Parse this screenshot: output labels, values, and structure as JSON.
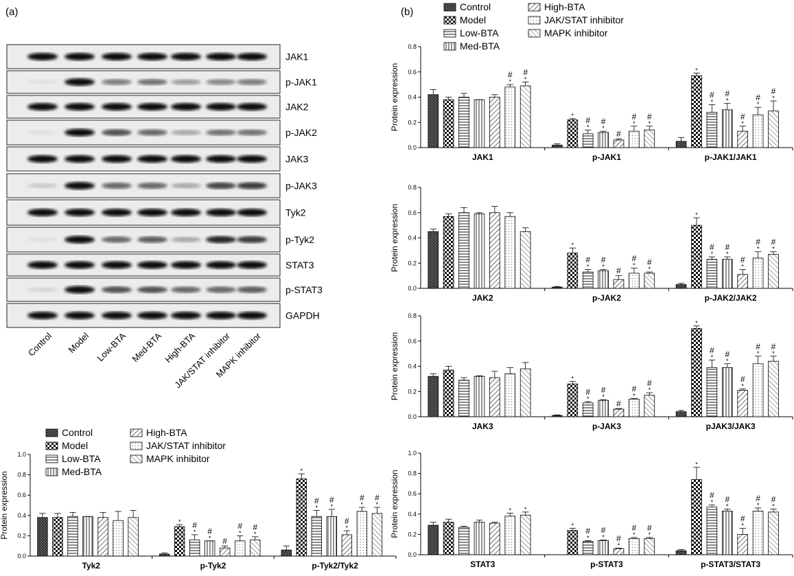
{
  "panel_a_label": "(a)",
  "panel_b_label": "(b)",
  "blot": {
    "rows": [
      "JAK1",
      "p-JAK1",
      "JAK2",
      "p-JAK2",
      "JAK3",
      "p-JAK3",
      "Tyk2",
      "p-Tyk2",
      "STAT3",
      "p-STAT3",
      "GAPDH"
    ],
    "lanes": [
      "Control",
      "Model",
      "Low-BTA",
      "Med-BTA",
      "High-BTA",
      "JAK/STAT inhibitor",
      "MAPK inhibitor"
    ],
    "intensity": [
      [
        1,
        1,
        1,
        1,
        1,
        1,
        1
      ],
      [
        0.05,
        1,
        0.5,
        0.55,
        0.35,
        0.45,
        0.5
      ],
      [
        1,
        1,
        1,
        1,
        1,
        1,
        1
      ],
      [
        0.05,
        1,
        0.7,
        0.6,
        0.3,
        0.55,
        0.55
      ],
      [
        1,
        1,
        1,
        1,
        1,
        1,
        1
      ],
      [
        0.15,
        1,
        0.6,
        0.6,
        0.3,
        0.75,
        0.8
      ],
      [
        1,
        1,
        1,
        1,
        1,
        1,
        1
      ],
      [
        0.05,
        1,
        0.6,
        0.65,
        0.3,
        0.9,
        0.8
      ],
      [
        1,
        1,
        1,
        1,
        1,
        1,
        1
      ],
      [
        0.1,
        1,
        0.7,
        0.7,
        0.6,
        0.6,
        0.65
      ],
      [
        1,
        1,
        1,
        1,
        1,
        1,
        1
      ]
    ]
  },
  "legend_labels": [
    "Control",
    "Model",
    "Low-BTA",
    "Med-BTA",
    "High-BTA",
    "JAK/STAT inhibitor",
    "MAPK inhibitor"
  ],
  "chart_data": [
    {
      "id": "tyk2",
      "type": "bar",
      "ylabel": "Protein expression",
      "ylim": [
        0,
        1.0
      ],
      "yticks": [
        "0.0",
        "0.2",
        "0.4",
        "0.6",
        "0.8",
        "1.0"
      ],
      "categories": [
        "Tyk2",
        "p-Tyk2",
        "p-Tyk2/Tyk2"
      ],
      "series_names": [
        "Control",
        "Model",
        "Low-BTA",
        "Med-BTA",
        "High-BTA",
        "JAK/STAT inhibitor",
        "MAPK inhibitor"
      ],
      "values": [
        [
          0.38,
          0.38,
          0.39,
          0.39,
          0.38,
          0.35,
          0.38
        ],
        [
          0.02,
          0.29,
          0.16,
          0.15,
          0.08,
          0.15,
          0.16
        ],
        [
          0.06,
          0.76,
          0.39,
          0.39,
          0.21,
          0.44,
          0.42
        ]
      ],
      "errors": [
        [
          0.04,
          0.04,
          0.04,
          0.0,
          0.05,
          0.09,
          0.07
        ],
        [
          0.01,
          0.02,
          0.05,
          0.0,
          0.02,
          0.05,
          0.03
        ],
        [
          0.04,
          0.05,
          0.06,
          0.07,
          0.04,
          0.04,
          0.06
        ]
      ],
      "marks": [
        [
          "",
          "",
          "",
          "",
          "",
          "",
          ""
        ],
        [
          "",
          "*",
          "#*",
          "#*",
          "#",
          "#*",
          "#*"
        ],
        [
          "",
          "*",
          "#*",
          "#*",
          "#*",
          "#*",
          "#*"
        ]
      ]
    },
    {
      "id": "jak1",
      "type": "bar",
      "ylabel": "Protein expression",
      "ylim": [
        0,
        0.8
      ],
      "yticks": [
        "0.0",
        "0.2",
        "0.4",
        "0.6",
        "0.8"
      ],
      "categories": [
        "JAK1",
        "p-JAK1",
        "p-JAK1/JAK1"
      ],
      "series_names": [
        "Control",
        "Model",
        "Low-BTA",
        "Med-BTA",
        "High-BTA",
        "JAK/STAT inhibitor",
        "MAPK inhibitor"
      ],
      "values": [
        [
          0.42,
          0.38,
          0.4,
          0.38,
          0.4,
          0.48,
          0.49
        ],
        [
          0.02,
          0.22,
          0.11,
          0.12,
          0.06,
          0.13,
          0.14
        ],
        [
          0.05,
          0.57,
          0.28,
          0.3,
          0.13,
          0.26,
          0.29
        ]
      ],
      "errors": [
        [
          0.04,
          0.02,
          0.03,
          0.0,
          0.02,
          0.02,
          0.03
        ],
        [
          0.01,
          0.01,
          0.03,
          0.01,
          0.01,
          0.04,
          0.03
        ],
        [
          0.03,
          0.02,
          0.06,
          0.05,
          0.04,
          0.06,
          0.08
        ]
      ],
      "marks": [
        [
          "",
          "",
          "",
          "",
          "",
          "#*",
          "#*"
        ],
        [
          "",
          "*",
          "#*",
          "#*",
          "#",
          "#*",
          "#*"
        ],
        [
          "",
          "*",
          "#*",
          "#*",
          "#*",
          "#*",
          "#*"
        ]
      ]
    },
    {
      "id": "jak2",
      "type": "bar",
      "ylabel": "Protein expression",
      "ylim": [
        0,
        0.8
      ],
      "yticks": [
        "0.0",
        "0.2",
        "0.4",
        "0.6",
        "0.8"
      ],
      "categories": [
        "JAK2",
        "p-JAK2",
        "p-JAK2/JAK2"
      ],
      "series_names": [
        "Control",
        "Model",
        "Low-BTA",
        "Med-BTA",
        "High-BTA",
        "JAK/STAT inhibitor",
        "MAPK inhibitor"
      ],
      "values": [
        [
          0.45,
          0.57,
          0.6,
          0.59,
          0.6,
          0.57,
          0.45
        ],
        [
          0.01,
          0.28,
          0.13,
          0.14,
          0.07,
          0.12,
          0.12
        ],
        [
          0.03,
          0.5,
          0.23,
          0.23,
          0.11,
          0.24,
          0.27
        ]
      ],
      "errors": [
        [
          0.02,
          0.02,
          0.04,
          0.01,
          0.05,
          0.03,
          0.03
        ],
        [
          0.005,
          0.04,
          0.02,
          0.01,
          0.03,
          0.04,
          0.01
        ],
        [
          0.01,
          0.06,
          0.02,
          0.02,
          0.04,
          0.05,
          0.02
        ]
      ],
      "marks": [
        [
          "",
          "",
          "",
          "",
          "",
          "",
          ""
        ],
        [
          "",
          "*",
          "#*",
          "#*",
          "#",
          "#*",
          "#*"
        ],
        [
          "",
          "*",
          "#*",
          "#*",
          "#*",
          "#*",
          "#*"
        ]
      ]
    },
    {
      "id": "jak3",
      "type": "bar",
      "ylabel": "Protein expression",
      "ylim": [
        0,
        0.8
      ],
      "yticks": [
        "0.0",
        "0.2",
        "0.4",
        "0.6",
        "0.8"
      ],
      "categories": [
        "JAK3",
        "p-JAK3",
        "pJAK3/JAK3"
      ],
      "series_names": [
        "Control",
        "Model",
        "Low-BTA",
        "Med-BTA",
        "High-BTA",
        "JAK/STAT inhibitor",
        "MAPK inhibitor"
      ],
      "values": [
        [
          0.32,
          0.37,
          0.29,
          0.32,
          0.31,
          0.34,
          0.38
        ],
        [
          0.01,
          0.26,
          0.11,
          0.13,
          0.06,
          0.14,
          0.17
        ],
        [
          0.04,
          0.7,
          0.39,
          0.39,
          0.21,
          0.42,
          0.44
        ]
      ],
      "errors": [
        [
          0.02,
          0.03,
          0.02,
          0.005,
          0.05,
          0.05,
          0.05
        ],
        [
          0.005,
          0.02,
          0.01,
          0.005,
          0.005,
          0.005,
          0.02
        ],
        [
          0.01,
          0.02,
          0.06,
          0.03,
          0.01,
          0.06,
          0.04
        ]
      ],
      "marks": [
        [
          "",
          "",
          "",
          "",
          "",
          "",
          ""
        ],
        [
          "",
          "*",
          "#*",
          "#*",
          "#",
          "#*",
          "#*"
        ],
        [
          "",
          "*",
          "#*",
          "#*",
          "#*",
          "#*",
          "#*"
        ]
      ]
    },
    {
      "id": "stat3",
      "type": "bar",
      "ylabel": "Protein expression",
      "ylim": [
        0,
        1.0
      ],
      "yticks": [
        "0.0",
        "0.2",
        "0.4",
        "0.6",
        "0.8",
        "1.0"
      ],
      "categories": [
        "STAT3",
        "p-STAT3",
        "p-STAT3/STAT3"
      ],
      "series_names": [
        "Control",
        "Model",
        "Low-BTA",
        "Med-BTA",
        "High-BTA",
        "JAK/STAT inhibitor",
        "MAPK inhibitor"
      ],
      "values": [
        [
          0.29,
          0.32,
          0.27,
          0.32,
          0.31,
          0.38,
          0.39
        ],
        [
          0.0,
          0.24,
          0.13,
          0.14,
          0.06,
          0.16,
          0.16
        ],
        [
          0.04,
          0.74,
          0.47,
          0.43,
          0.2,
          0.43,
          0.42
        ]
      ],
      "errors": [
        [
          0.03,
          0.03,
          0.01,
          0.02,
          0.01,
          0.03,
          0.03
        ],
        [
          0.0,
          0.02,
          0.01,
          0.005,
          0.005,
          0.01,
          0.01
        ],
        [
          0.01,
          0.12,
          0.02,
          0.02,
          0.06,
          0.03,
          0.03
        ]
      ],
      "marks": [
        [
          "",
          "",
          "",
          "",
          "",
          "*",
          "*"
        ],
        [
          "",
          "*",
          "#*",
          "#*",
          "#*",
          "#*",
          "#*"
        ],
        [
          "",
          "*",
          "#*",
          "#*",
          "#*",
          "#*",
          "#*"
        ]
      ]
    }
  ]
}
